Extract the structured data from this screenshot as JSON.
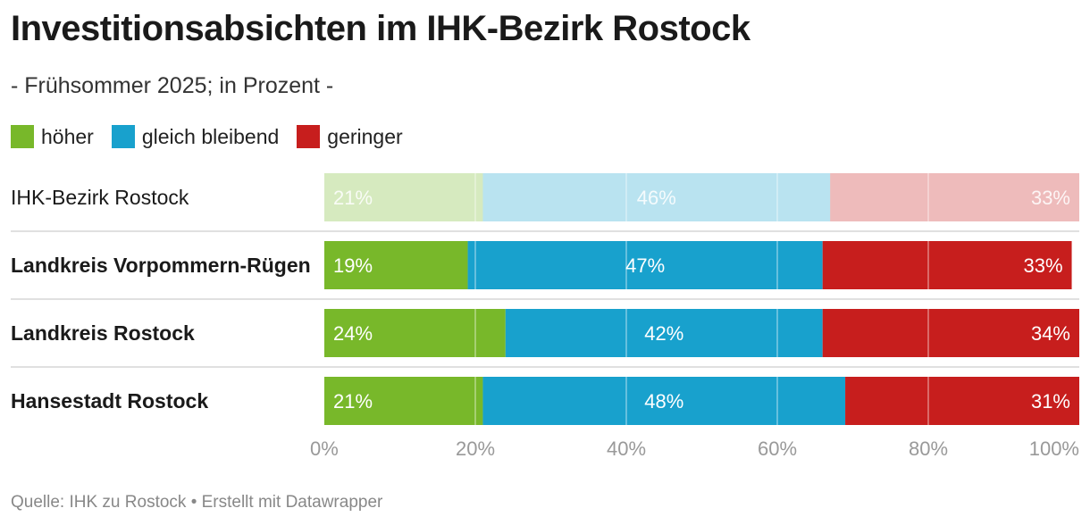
{
  "title": "Investitionsabsichten im IHK-Bezirk Rostock",
  "subtitle": "- Frühsommer 2025; in Prozent -",
  "source": "Quelle: IHK zu Rostock • Erstellt mit Datawrapper",
  "colors": {
    "hoeher": "#78b82a",
    "gleich": "#18a1cd",
    "geringer": "#c71e1d"
  },
  "chart_data": {
    "type": "bar",
    "orientation": "horizontal",
    "stacked": true,
    "categories": [
      "IHK-Bezirk Rostock",
      "Landkreis Vorpommern-Rügen",
      "Landkreis Rostock",
      "Hansestadt Rostock"
    ],
    "highlighted_categories": [
      "Landkreis Vorpommern-Rügen",
      "Landkreis Rostock",
      "Hansestadt Rostock"
    ],
    "faded_categories": [
      "IHK-Bezirk Rostock"
    ],
    "series": [
      {
        "name": "höher",
        "values": [
          21,
          19,
          24,
          21
        ]
      },
      {
        "name": "gleich bleibend",
        "values": [
          46,
          47,
          42,
          48
        ]
      },
      {
        "name": "geringer",
        "values": [
          33,
          33,
          34,
          31
        ]
      }
    ],
    "value_suffix": "%",
    "xlim": [
      0,
      100
    ],
    "x_ticks": [
      "0%",
      "20%",
      "40%",
      "60%",
      "80%",
      "100%"
    ],
    "grid": true,
    "legend_position": "top-left"
  }
}
